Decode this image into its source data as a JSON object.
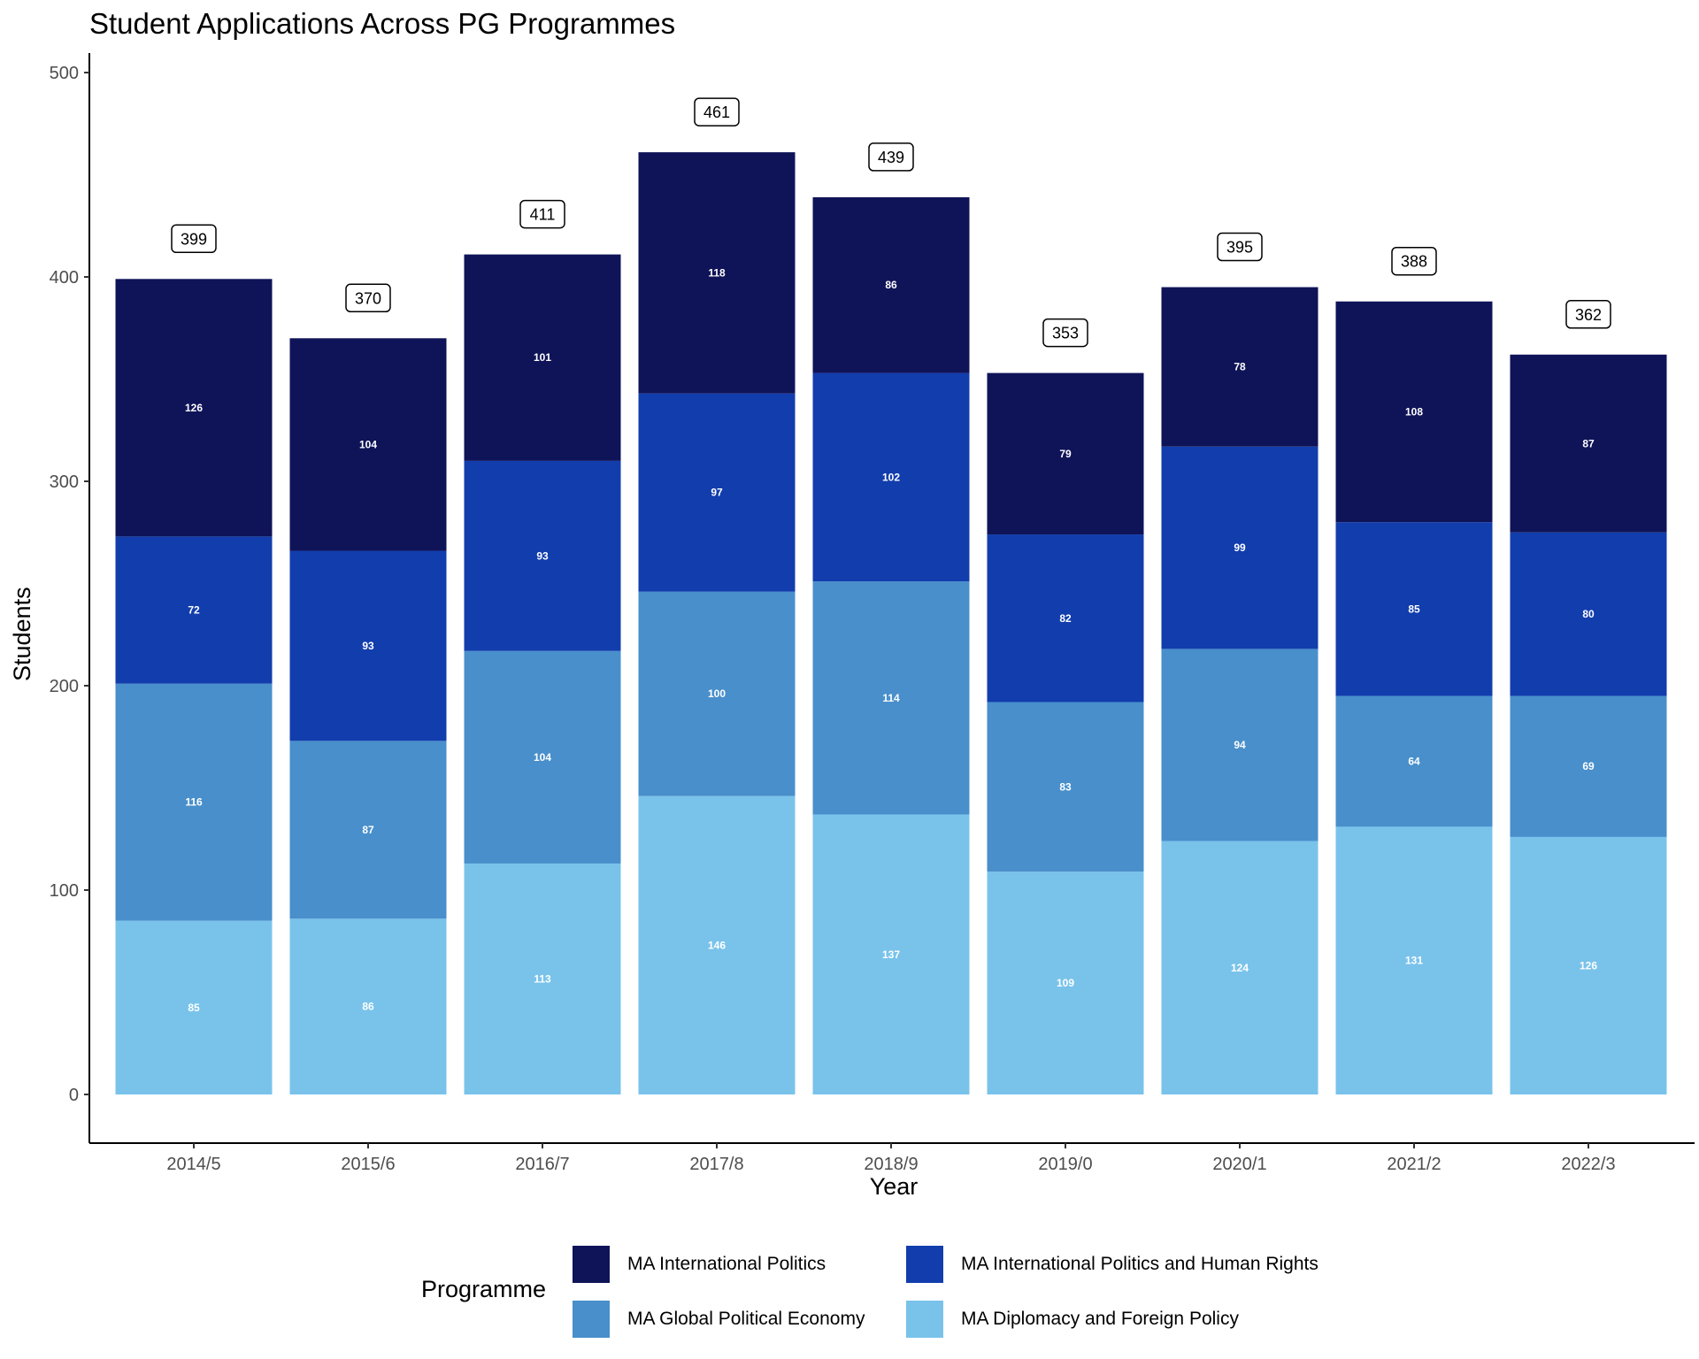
{
  "chart_data": {
    "type": "bar",
    "stacked": true,
    "title": "Student Applications Across PG Programmes",
    "xlabel": "Year",
    "ylabel": "Students",
    "ylim": [
      0,
      500
    ],
    "yticks": [
      0,
      100,
      200,
      300,
      400,
      500
    ],
    "categories": [
      "2014/5",
      "2015/6",
      "2016/7",
      "2017/8",
      "2018/9",
      "2019/0",
      "2020/1",
      "2021/2",
      "2022/3"
    ],
    "series": [
      {
        "name": "MA Diplomacy and Foreign Policy",
        "color": "#79C3EB",
        "values": [
          85,
          86,
          113,
          146,
          137,
          109,
          124,
          131,
          126
        ]
      },
      {
        "name": "MA Global Political Economy",
        "color": "#488FCB",
        "values": [
          116,
          87,
          104,
          100,
          114,
          83,
          94,
          64,
          69
        ]
      },
      {
        "name": "MA International Politics and Human Rights",
        "color": "#113DAD",
        "values": [
          72,
          93,
          93,
          97,
          102,
          82,
          99,
          85,
          80
        ]
      },
      {
        "name": "MA International Politics",
        "color": "#0F1357",
        "values": [
          126,
          104,
          101,
          118,
          86,
          79,
          78,
          108,
          87
        ]
      }
    ],
    "totals": [
      399,
      370,
      411,
      461,
      439,
      353,
      395,
      388,
      362
    ],
    "legend": {
      "title": "Programme",
      "position": "bottom",
      "order": [
        "MA International Politics",
        "MA International Politics and Human Rights",
        "MA Global Political Economy",
        "MA Diplomacy and Foreign Policy"
      ]
    },
    "grid": false
  }
}
